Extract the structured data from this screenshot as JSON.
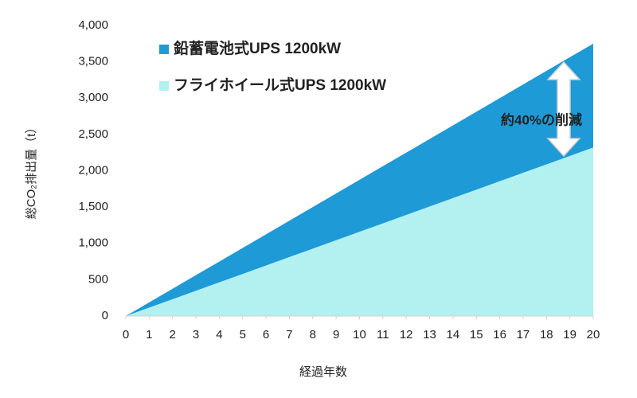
{
  "chart_data": {
    "type": "area",
    "x_label": "経過年数",
    "y_label": "総CO₂排出量（t）",
    "x": [
      0,
      1,
      2,
      3,
      4,
      5,
      6,
      7,
      8,
      9,
      10,
      11,
      12,
      13,
      14,
      15,
      16,
      17,
      18,
      19,
      20
    ],
    "xlim": [
      0,
      20
    ],
    "xticks": [
      0,
      1,
      2,
      3,
      4,
      5,
      6,
      7,
      8,
      9,
      10,
      11,
      12,
      13,
      14,
      15,
      16,
      17,
      18,
      19,
      20
    ],
    "ylim": [
      0,
      4000
    ],
    "yticks": [
      0,
      500,
      {
        "value": 1000,
        "label": "1,000"
      },
      {
        "value": 1500,
        "label": "1,500"
      },
      {
        "value": 2000,
        "label": "2,000"
      },
      {
        "value": 2500,
        "label": "2,500"
      },
      {
        "value": 3000,
        "label": "3,000"
      },
      {
        "value": 3500,
        "label": "3,500"
      },
      {
        "value": 4000,
        "label": "4,000"
      }
    ],
    "grid": false,
    "legend": "upper left",
    "series": [
      {
        "name": "鉛蓄電池式UPS 1200kW",
        "color": "#1e9ad6",
        "values": [
          0,
          187.5,
          375,
          562.5,
          750,
          937.5,
          1125,
          1312.5,
          1500,
          1687.5,
          1875,
          2062.5,
          2250,
          2437.5,
          2625,
          2812.5,
          3000,
          3187.5,
          3375,
          3562.5,
          3750
        ]
      },
      {
        "name": "フライホイール式UPS 1200kW",
        "color": "#b3f0f0",
        "values": [
          0,
          116,
          232,
          348,
          464,
          580,
          696,
          812,
          928,
          1044,
          1160,
          1276,
          1392,
          1508,
          1624,
          1740,
          1856,
          1972,
          2088,
          2204,
          2320
        ]
      }
    ],
    "annotation": "約40%の削減"
  }
}
